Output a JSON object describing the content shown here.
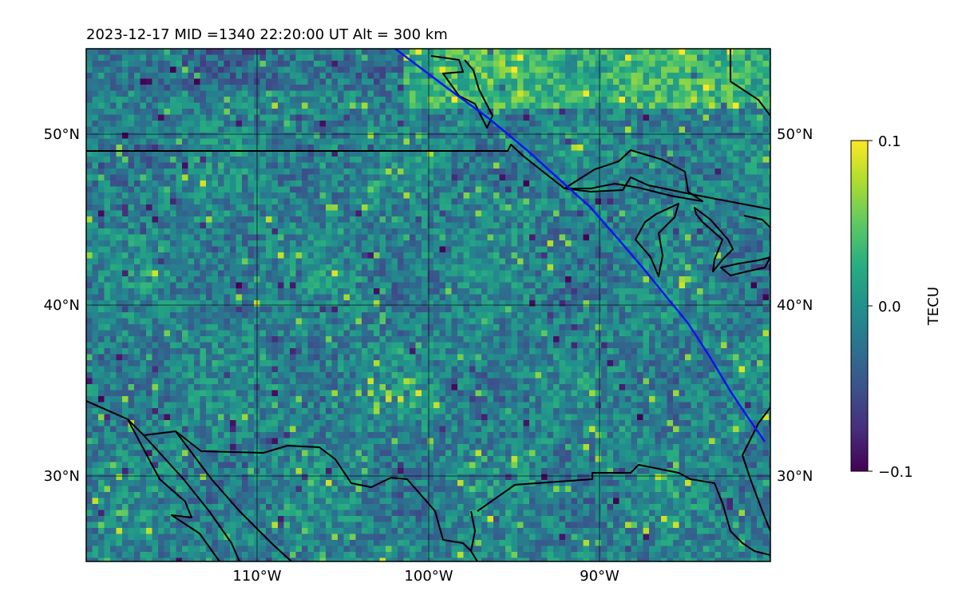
{
  "figure": {
    "title": "2023-12-17  MID =1340    22:20:00  UT  Alt = 300 km"
  },
  "map": {
    "extent": {
      "lon": [
        -120,
        -80
      ],
      "lat": [
        25,
        55
      ]
    },
    "lat_ticks": [
      {
        "value": 30,
        "label": "30°N"
      },
      {
        "value": 40,
        "label": "40°N"
      },
      {
        "value": 50,
        "label": "50°N"
      }
    ],
    "lon_ticks": [
      {
        "value": -110,
        "label": "110°W"
      },
      {
        "value": -100,
        "label": "100°W"
      },
      {
        "value": -90,
        "label": "90°W"
      }
    ],
    "field": {
      "variable": "TEC perturbation",
      "units": "TECU",
      "colormap": "viridis",
      "range": [
        -0.1,
        0.1
      ]
    },
    "colors": {
      "track": "#0a16f2",
      "coast": "#000000",
      "grid": "#000000"
    }
  },
  "colorbar": {
    "label": "TECU",
    "ticks": [
      {
        "value": 0.1,
        "label": "0.1"
      },
      {
        "value": 0.0,
        "label": "0.0"
      },
      {
        "value": -0.1,
        "label": "−0.1"
      }
    ]
  }
}
